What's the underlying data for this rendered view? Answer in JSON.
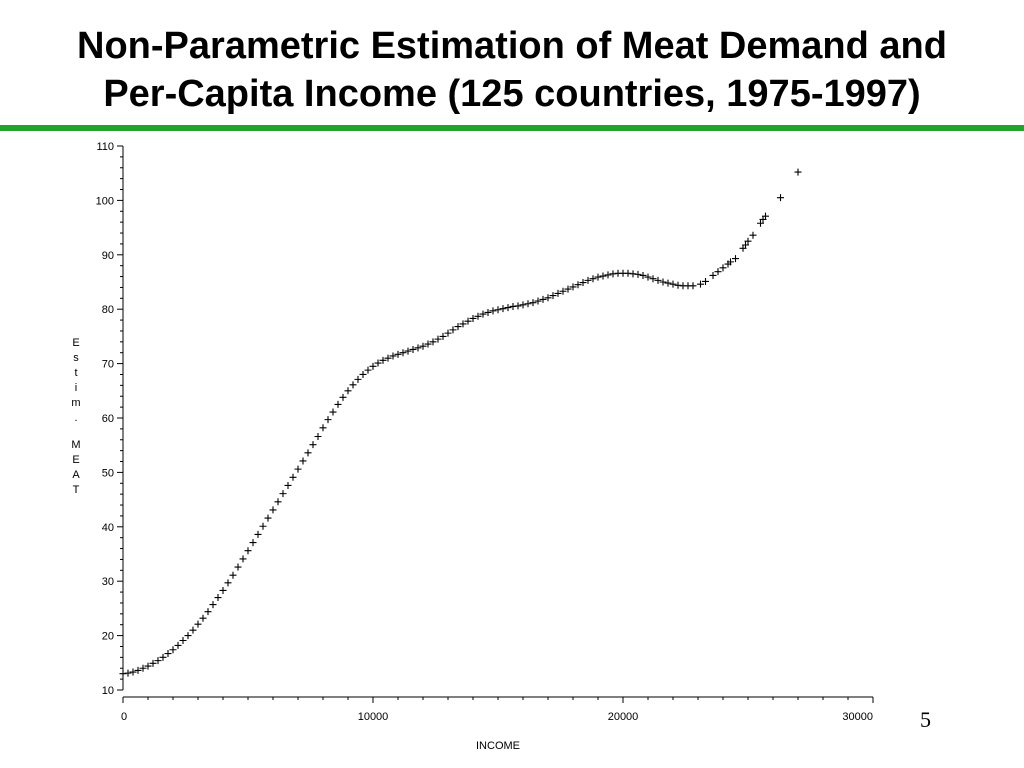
{
  "slide": {
    "title_line1": "Non-Parametric Estimation of Meat Demand and",
    "title_line2": "Per-Capita Income (125 countries, 1975-1997)",
    "page_number": "5",
    "rule_color": "#22a52a"
  },
  "chart_data": {
    "type": "scatter",
    "title": "",
    "xlabel": "INCOME",
    "ylabel": "Estim. MEAT",
    "xlim": [
      0,
      30000
    ],
    "ylim": [
      10,
      110
    ],
    "x_ticks": [
      0,
      10000,
      20000,
      30000
    ],
    "y_ticks": [
      10,
      20,
      30,
      40,
      50,
      60,
      70,
      80,
      90,
      100,
      110
    ],
    "marker": "plus",
    "grid": false,
    "series": [
      {
        "points": [
          [
            0,
            13
          ],
          [
            200,
            13.1
          ],
          [
            400,
            13.3
          ],
          [
            600,
            13.6
          ],
          [
            800,
            14
          ],
          [
            1000,
            14.4
          ],
          [
            1200,
            14.9
          ],
          [
            1400,
            15.4
          ],
          [
            1600,
            16
          ],
          [
            1800,
            16.7
          ],
          [
            2000,
            17.4
          ],
          [
            2200,
            18.2
          ],
          [
            2400,
            19.1
          ],
          [
            2600,
            20
          ],
          [
            2800,
            21
          ],
          [
            3000,
            22.1
          ],
          [
            3200,
            23.2
          ],
          [
            3400,
            24.4
          ],
          [
            3600,
            25.7
          ],
          [
            3800,
            27
          ],
          [
            4000,
            28.3
          ],
          [
            4200,
            29.7
          ],
          [
            4400,
            31.1
          ],
          [
            4600,
            32.6
          ],
          [
            4800,
            34.1
          ],
          [
            5000,
            35.6
          ],
          [
            5200,
            37.1
          ],
          [
            5400,
            38.6
          ],
          [
            5600,
            40.1
          ],
          [
            5800,
            41.6
          ],
          [
            6000,
            43.1
          ],
          [
            6200,
            44.6
          ],
          [
            6400,
            46.1
          ],
          [
            6600,
            47.6
          ],
          [
            6800,
            49.1
          ],
          [
            7000,
            50.6
          ],
          [
            7200,
            52.1
          ],
          [
            7400,
            53.6
          ],
          [
            7600,
            55.1
          ],
          [
            7800,
            56.6
          ],
          [
            8000,
            58.2
          ],
          [
            8200,
            59.7
          ],
          [
            8400,
            61.1
          ],
          [
            8600,
            62.5
          ],
          [
            8800,
            63.8
          ],
          [
            9000,
            65
          ],
          [
            9200,
            66.1
          ],
          [
            9400,
            67.1
          ],
          [
            9600,
            68
          ],
          [
            9800,
            68.8
          ],
          [
            10000,
            69.5
          ],
          [
            10200,
            70.1
          ],
          [
            10400,
            70.6
          ],
          [
            10600,
            71
          ],
          [
            10800,
            71.4
          ],
          [
            11000,
            71.7
          ],
          [
            11200,
            72
          ],
          [
            11400,
            72.3
          ],
          [
            11600,
            72.6
          ],
          [
            11800,
            72.9
          ],
          [
            12000,
            73.2
          ],
          [
            12200,
            73.6
          ],
          [
            12400,
            74
          ],
          [
            12600,
            74.5
          ],
          [
            12800,
            75
          ],
          [
            13000,
            75.6
          ],
          [
            13200,
            76.2
          ],
          [
            13400,
            76.8
          ],
          [
            13600,
            77.3
          ],
          [
            13800,
            77.8
          ],
          [
            14000,
            78.3
          ],
          [
            14200,
            78.7
          ],
          [
            14400,
            79.1
          ],
          [
            14600,
            79.4
          ],
          [
            14800,
            79.7
          ],
          [
            15000,
            79.9
          ],
          [
            15200,
            80.1
          ],
          [
            15400,
            80.3
          ],
          [
            15600,
            80.5
          ],
          [
            15800,
            80.6
          ],
          [
            16000,
            80.8
          ],
          [
            16200,
            81
          ],
          [
            16400,
            81.2
          ],
          [
            16600,
            81.5
          ],
          [
            16800,
            81.8
          ],
          [
            17000,
            82.1
          ],
          [
            17200,
            82.5
          ],
          [
            17400,
            82.9
          ],
          [
            17600,
            83.3
          ],
          [
            17800,
            83.7
          ],
          [
            18000,
            84.1
          ],
          [
            18200,
            84.5
          ],
          [
            18400,
            84.9
          ],
          [
            18600,
            85.3
          ],
          [
            18800,
            85.6
          ],
          [
            19000,
            85.9
          ],
          [
            19200,
            86.1
          ],
          [
            19400,
            86.3
          ],
          [
            19600,
            86.5
          ],
          [
            19800,
            86.6
          ],
          [
            20000,
            86.6
          ],
          [
            20200,
            86.6
          ],
          [
            20400,
            86.5
          ],
          [
            20600,
            86.4
          ],
          [
            20800,
            86.2
          ],
          [
            21000,
            85.9
          ],
          [
            21200,
            85.6
          ],
          [
            21400,
            85.3
          ],
          [
            21600,
            85
          ],
          [
            21800,
            84.8
          ],
          [
            22000,
            84.6
          ],
          [
            22200,
            84.4
          ],
          [
            22400,
            84.3
          ],
          [
            22600,
            84.3
          ],
          [
            22800,
            84.3
          ],
          [
            23100,
            84.6
          ],
          [
            23300,
            85.1
          ],
          [
            23600,
            86.2
          ],
          [
            23800,
            86.9
          ],
          [
            24000,
            87.6
          ],
          [
            24200,
            88.3
          ],
          [
            24300,
            88.7
          ],
          [
            24500,
            89.3
          ],
          [
            24800,
            91.2
          ],
          [
            24900,
            91.8
          ],
          [
            25000,
            92.5
          ],
          [
            25200,
            93.6
          ],
          [
            25500,
            95.8
          ],
          [
            25600,
            96.5
          ],
          [
            25700,
            97.1
          ],
          [
            26300,
            100.5
          ],
          [
            27000,
            105.2
          ]
        ]
      }
    ]
  }
}
